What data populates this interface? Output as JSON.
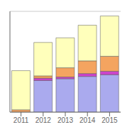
{
  "chart_data": {
    "type": "bar",
    "stacked": true,
    "categories": [
      "2011",
      "2012",
      "2013",
      "2014",
      "2015"
    ],
    "series": [
      {
        "color": "#aaaaee",
        "values": [
          0,
          55,
          58,
          62,
          65
        ]
      },
      {
        "color": "#cc44cc",
        "values": [
          0,
          4,
          3,
          5,
          6
        ]
      },
      {
        "color": "#f4a460",
        "values": [
          4,
          4,
          16,
          22,
          26
        ]
      },
      {
        "color": "#ffffbb",
        "values": [
          68,
          58,
          52,
          62,
          70
        ]
      }
    ],
    "ylim": [
      0,
      175
    ],
    "yticks": [
      0,
      25,
      50,
      75,
      100,
      125,
      150,
      175
    ],
    "grid": true,
    "tick_labels": "x"
  }
}
